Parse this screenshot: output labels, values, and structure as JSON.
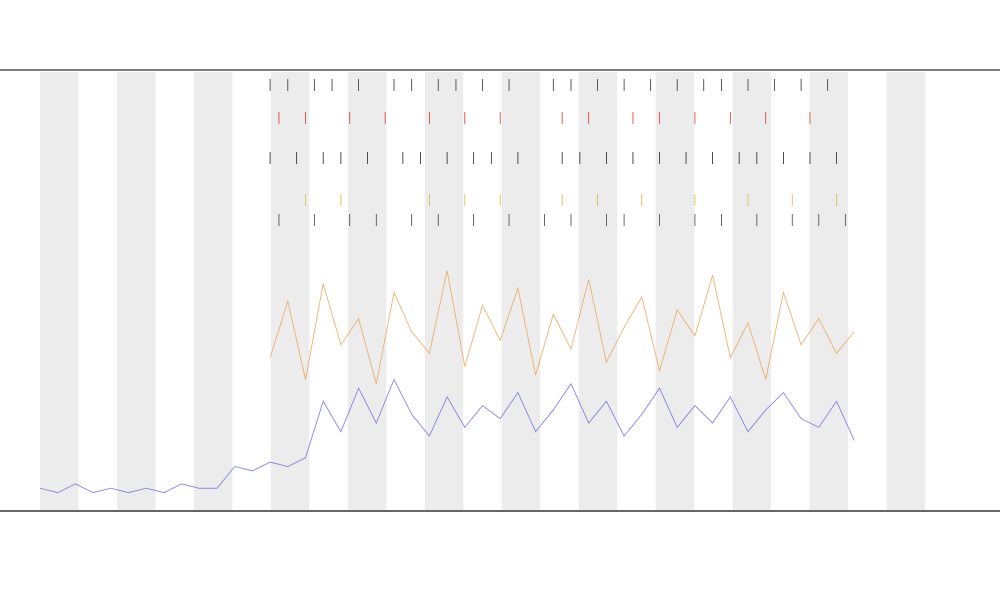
{
  "chart_data": {
    "type": "line",
    "xlim": [
      0,
      100
    ],
    "ylim": [
      0,
      100
    ],
    "series": [
      {
        "color": "#6a6ae0",
        "x": [
          0,
          2,
          4,
          6,
          8,
          10,
          12,
          14,
          16,
          18,
          20,
          22,
          24,
          26,
          28,
          30,
          32,
          34,
          36,
          38,
          40,
          42,
          44,
          46,
          48,
          50,
          52,
          54,
          56,
          58,
          60,
          62,
          64,
          66,
          68,
          70,
          72,
          74,
          76,
          78,
          80,
          82,
          84,
          86,
          88,
          90,
          92
        ],
        "values": [
          5,
          4,
          6,
          4,
          5,
          4,
          5,
          4,
          6,
          5,
          5,
          10,
          9,
          11,
          10,
          12,
          25,
          18,
          28,
          20,
          30,
          22,
          17,
          26,
          19,
          24,
          21,
          27,
          18,
          23,
          29,
          20,
          25,
          17,
          22,
          28,
          19,
          24,
          20,
          26,
          18,
          23,
          27,
          21,
          19,
          25,
          16
        ]
      },
      {
        "color": "#e8a050",
        "x": [
          26,
          28,
          30,
          32,
          34,
          36,
          38,
          40,
          42,
          44,
          46,
          48,
          50,
          52,
          54,
          56,
          58,
          60,
          62,
          64,
          66,
          68,
          70,
          72,
          74,
          76,
          78,
          80,
          82,
          84,
          86,
          88,
          90,
          92
        ],
        "values": [
          35,
          48,
          30,
          52,
          38,
          44,
          29,
          50,
          41,
          36,
          55,
          33,
          47,
          39,
          51,
          31,
          45,
          37,
          53,
          34,
          42,
          49,
          32,
          46,
          40,
          54,
          35,
          43,
          30,
          50,
          38,
          44,
          36,
          41
        ]
      }
    ],
    "events": [
      {
        "color": "#333333",
        "x": [
          26,
          28,
          31,
          33,
          36,
          40,
          42,
          45,
          47,
          50,
          53,
          58,
          60,
          63,
          66,
          69,
          72,
          75,
          77,
          80,
          83,
          86,
          89
        ]
      },
      {
        "color": "#dd3333",
        "x": [
          27,
          30,
          35,
          39,
          44,
          48,
          52,
          59,
          62,
          67,
          70,
          74,
          78,
          82,
          87
        ]
      },
      {
        "color": "#222222",
        "x": [
          26,
          29,
          32,
          34,
          37,
          41,
          43,
          46,
          49,
          51,
          54,
          59,
          61,
          64,
          67,
          70,
          73,
          76,
          79,
          81,
          84,
          87,
          90
        ]
      },
      {
        "color": "#c8c040",
        "x": [
          30,
          34,
          44,
          48,
          52,
          59,
          63,
          68,
          74,
          80,
          85,
          90
        ]
      },
      {
        "color": "#444444",
        "x": [
          27,
          31,
          35,
          38,
          42,
          45,
          49,
          53,
          57,
          60,
          64,
          66,
          70,
          74,
          77,
          81,
          85,
          88,
          91
        ]
      }
    ]
  }
}
